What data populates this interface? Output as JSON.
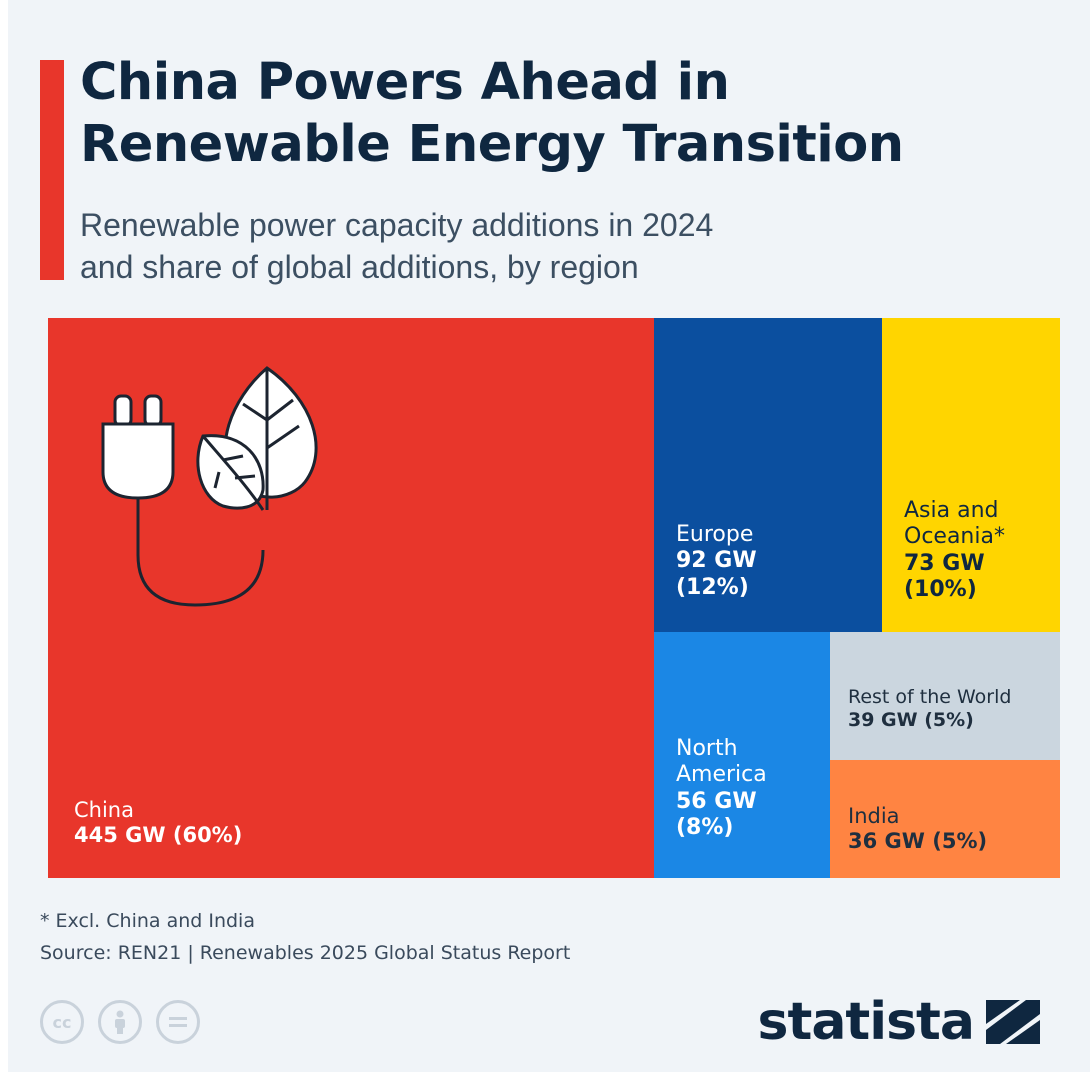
{
  "title": {
    "line1": "China Powers Ahead in",
    "line2": "Renewable Energy Transition"
  },
  "subtitle": {
    "line1": "Renewable power capacity additions in 2024",
    "line2": "and share of global additions, by region"
  },
  "colors": {
    "accent": "#e8362b",
    "china": "#e8362b",
    "europe": "#0b4f9f",
    "asia_oceania": "#ffd500",
    "north_america": "#1b87e5",
    "rest_of_world": "#cbd6df",
    "india": "#ff8442",
    "title": "#0f2740"
  },
  "chart_data": {
    "type": "treemap",
    "unit": "GW",
    "items": [
      {
        "region": "China",
        "value": 445,
        "share_pct": 60,
        "value_label": "445 GW (60%)"
      },
      {
        "region": "Europe",
        "value": 92,
        "share_pct": 12,
        "value_label": "92 GW",
        "share_label": "(12%)"
      },
      {
        "region": "Asia and Oceania*",
        "value": 73,
        "share_pct": 10,
        "value_label": "73 GW",
        "share_label": "(10%)"
      },
      {
        "region": "North America",
        "value": 56,
        "share_pct": 8,
        "value_label": "56 GW",
        "share_label": "(8%)"
      },
      {
        "region": "Rest of the World",
        "value": 39,
        "share_pct": 5,
        "value_label": "39 GW (5%)"
      },
      {
        "region": "India",
        "value": 36,
        "share_pct": 5,
        "value_label": "36 GW (5%)"
      }
    ]
  },
  "footnote": "* Excl. China and India",
  "source": "Source: REN21 | Renewables 2025 Global Status Report",
  "icons": [
    "plug-leaf-icon",
    "cc-icon",
    "by-icon",
    "nd-icon",
    "statista-logo-icon"
  ],
  "brand": "statista"
}
